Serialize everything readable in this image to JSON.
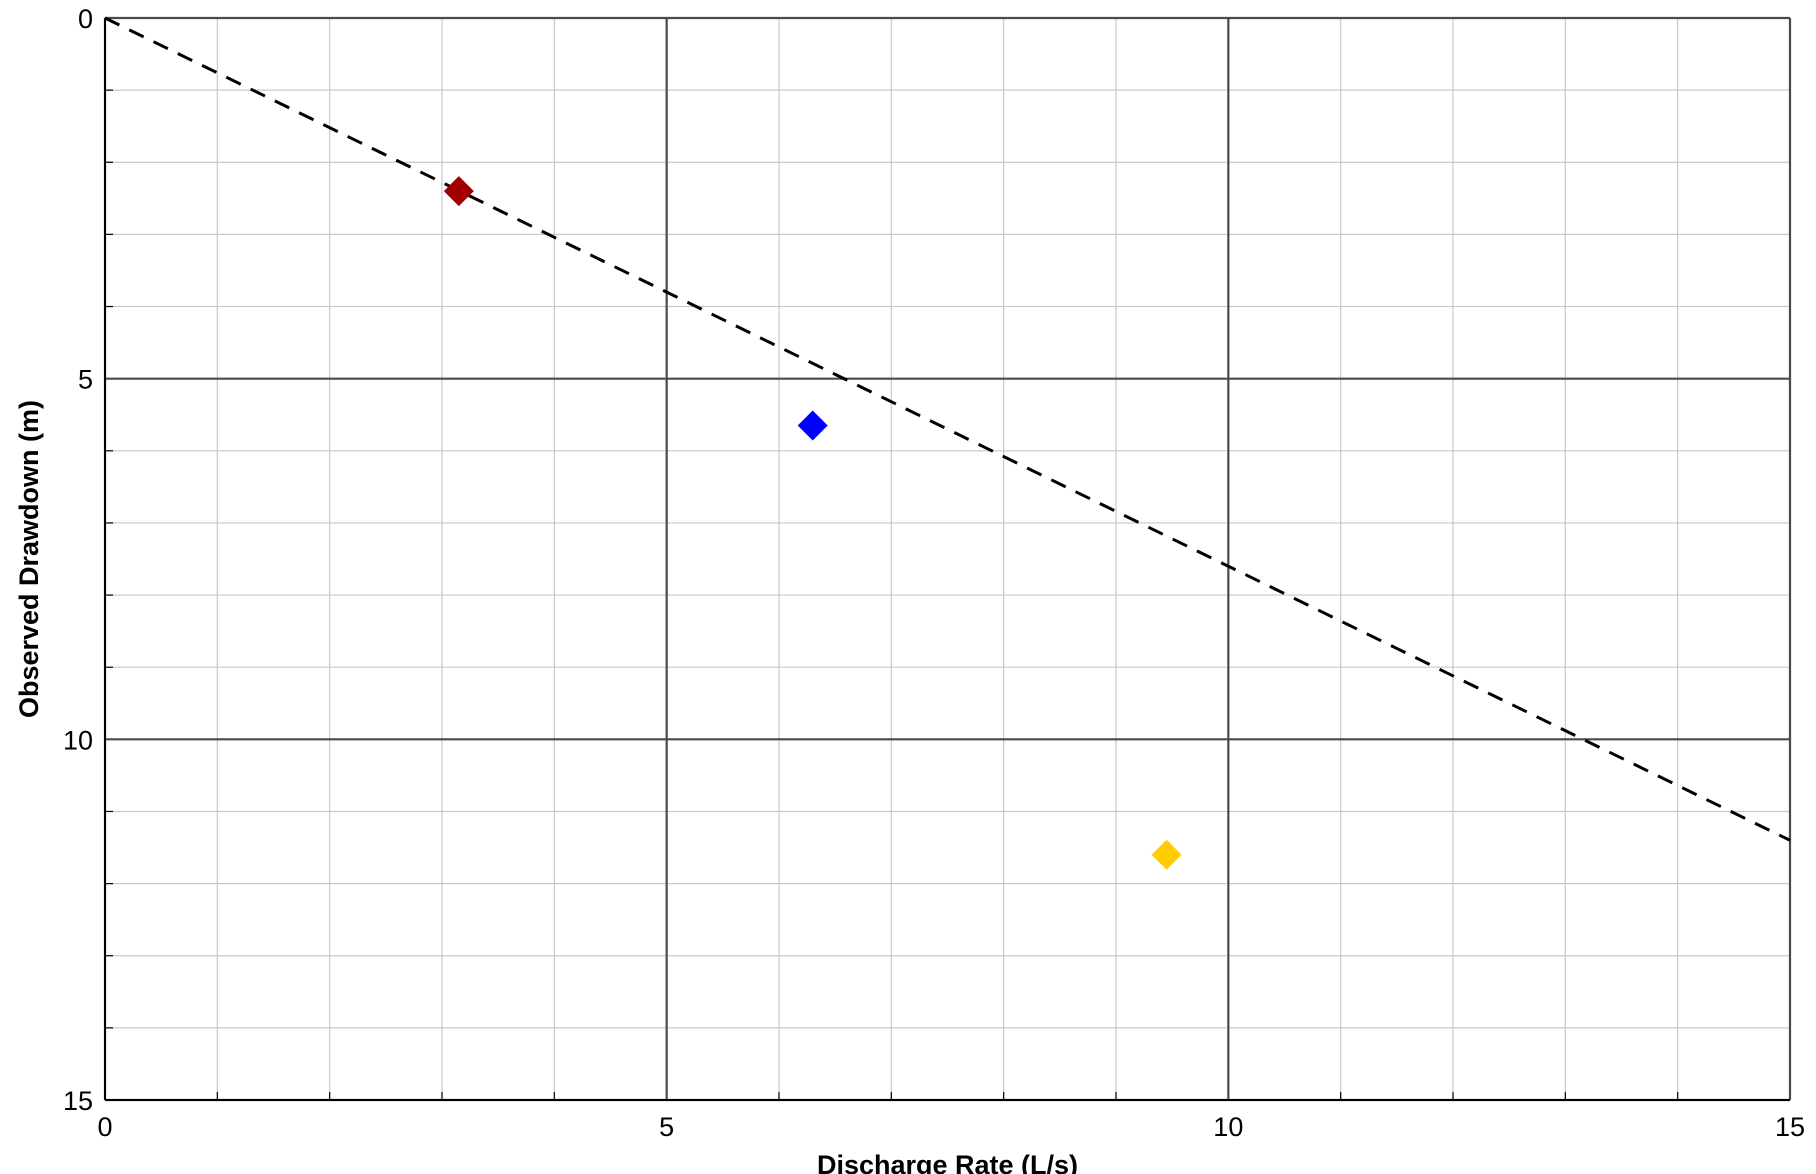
{
  "chart_data": {
    "type": "scatter",
    "title": "",
    "xlabel": "Discharge Rate (L/s)",
    "ylabel": "Observed Drawdown (m)",
    "xlim": [
      0,
      15
    ],
    "ylim": [
      0,
      15
    ],
    "y_inverted": true,
    "x_major_ticks": [
      0,
      5,
      10,
      15
    ],
    "y_major_ticks": [
      0,
      5,
      10,
      15
    ],
    "x_minor_step": 1,
    "y_minor_step": 1,
    "grid": true,
    "legend": "none",
    "points": [
      {
        "x": 3.15,
        "y": 2.4,
        "marker": "diamond",
        "color": "#a00000"
      },
      {
        "x": 6.3,
        "y": 5.65,
        "marker": "diamond",
        "color": "#0000ff"
      },
      {
        "x": 9.45,
        "y": 11.6,
        "marker": "diamond",
        "color": "#ffcc00"
      }
    ],
    "fit_line": {
      "style": "dashed",
      "color": "#000000",
      "x": [
        0,
        15
      ],
      "y": [
        0,
        11.4
      ]
    }
  }
}
